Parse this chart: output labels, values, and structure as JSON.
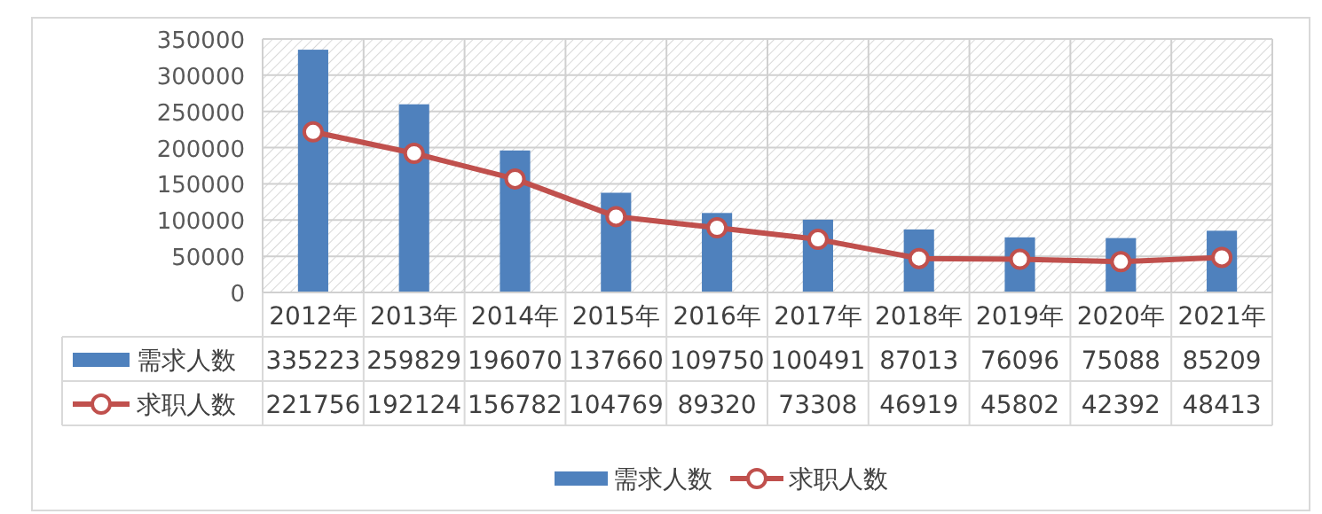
{
  "chart_data": {
    "type": "bar",
    "categories": [
      "2012年",
      "2013年",
      "2014年",
      "2015年",
      "2016年",
      "2017年",
      "2018年",
      "2019年",
      "2020年",
      "2021年"
    ],
    "series": [
      {
        "name": "需求人数",
        "color": "#4f81bd",
        "values": [
          335223,
          259829,
          196070,
          137660,
          109750,
          100491,
          87013,
          76096,
          75088,
          85209
        ]
      },
      {
        "name": "求职人数",
        "type": "line",
        "color": "#c0504d",
        "marker": "circle",
        "values": [
          221756,
          192124,
          156782,
          104769,
          89320,
          73308,
          46919,
          45802,
          42392,
          48413
        ]
      }
    ],
    "ylim": [
      0,
      350000
    ],
    "yticks": [
      0,
      50000,
      100000,
      150000,
      200000,
      250000,
      300000,
      350000
    ],
    "grid": true,
    "legend": "bottom",
    "data_labels": true
  }
}
